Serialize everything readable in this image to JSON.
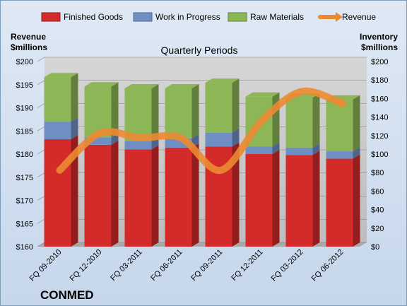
{
  "chart_data": {
    "type": "bar",
    "title": "",
    "subtitle": "Quarterly Periods",
    "company": "CONMED",
    "left_axis_title": [
      "Revenue",
      "$millions"
    ],
    "right_axis_title": [
      "Inventory",
      "$millions"
    ],
    "categories": [
      "FQ 09-2010",
      "FQ 12-2010",
      "FQ 03-2011",
      "FQ 06-2011",
      "FQ 09-2011",
      "FQ 12-2011",
      "FQ 03-2012",
      "FQ 06-2012"
    ],
    "stacked": true,
    "series": [
      {
        "name": "Finished Goods",
        "axis": "right",
        "color": "#d42a2a",
        "values": [
          116,
          110,
          105,
          107,
          108,
          100,
          99,
          95
        ]
      },
      {
        "name": "Work in Progress",
        "axis": "right",
        "color": "#6f8fc4",
        "values": [
          19,
          8,
          9,
          10,
          15,
          8,
          8,
          8
        ]
      },
      {
        "name": "Raw Materials",
        "axis": "right",
        "color": "#8db657",
        "values": [
          48,
          55,
          57,
          54,
          54,
          54,
          54,
          56
        ]
      },
      {
        "name": "Revenue",
        "axis": "left",
        "type": "line",
        "color": "#ec8a32",
        "values": [
          176.5,
          184.5,
          183.5,
          183.5,
          176.5,
          187,
          193.5,
          191
        ]
      }
    ],
    "left_axis": {
      "min": 160,
      "max": 200,
      "step": 5,
      "ticks": [
        "$160",
        "$165",
        "$170",
        "$175",
        "$180",
        "$185",
        "$190",
        "$195",
        "$200"
      ]
    },
    "right_axis": {
      "min": 0,
      "max": 200,
      "step": 20,
      "ticks": [
        "$0",
        "$20",
        "$40",
        "$60",
        "$80",
        "$100",
        "$120",
        "$140",
        "$160",
        "$180",
        "$200"
      ]
    },
    "legend_position": "top",
    "grid": true
  }
}
